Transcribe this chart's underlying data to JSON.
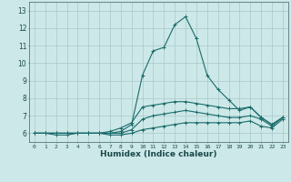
{
  "title": "",
  "xlabel": "Humidex (Indice chaleur)",
  "ylabel": "",
  "background_color": "#cde8e8",
  "grid_color": "#aac8c8",
  "line_color": "#1a6b6b",
  "xlim": [
    -0.5,
    23.5
  ],
  "ylim": [
    5.5,
    13.5
  ],
  "yticks": [
    6,
    7,
    8,
    9,
    10,
    11,
    12,
    13
  ],
  "xticks": [
    0,
    1,
    2,
    3,
    4,
    5,
    6,
    7,
    8,
    9,
    10,
    11,
    12,
    13,
    14,
    15,
    16,
    17,
    18,
    19,
    20,
    21,
    22,
    23
  ],
  "series": [
    {
      "x": [
        0,
        1,
        2,
        3,
        4,
        5,
        6,
        7,
        8,
        9,
        10,
        11,
        12,
        13,
        14,
        15,
        16,
        17,
        18,
        19,
        20,
        21,
        22,
        23
      ],
      "y": [
        6.0,
        6.0,
        6.0,
        6.0,
        6.0,
        6.0,
        6.0,
        6.0,
        6.1,
        6.5,
        9.3,
        10.7,
        10.9,
        12.2,
        12.65,
        11.4,
        9.3,
        8.5,
        7.9,
        7.3,
        7.5,
        6.9,
        6.5,
        6.9
      ]
    },
    {
      "x": [
        0,
        1,
        2,
        3,
        4,
        5,
        6,
        7,
        8,
        9,
        10,
        11,
        12,
        13,
        14,
        15,
        16,
        17,
        18,
        19,
        20,
        21,
        22,
        23
      ],
      "y": [
        6.0,
        6.0,
        6.0,
        6.0,
        6.0,
        6.0,
        6.0,
        6.1,
        6.3,
        6.6,
        7.5,
        7.6,
        7.7,
        7.8,
        7.8,
        7.7,
        7.6,
        7.5,
        7.4,
        7.4,
        7.5,
        6.9,
        6.5,
        6.9
      ]
    },
    {
      "x": [
        0,
        1,
        2,
        3,
        4,
        5,
        6,
        7,
        8,
        9,
        10,
        11,
        12,
        13,
        14,
        15,
        16,
        17,
        18,
        19,
        20,
        21,
        22,
        23
      ],
      "y": [
        6.0,
        6.0,
        6.0,
        6.0,
        6.0,
        6.0,
        6.0,
        6.0,
        6.0,
        6.2,
        6.8,
        7.0,
        7.1,
        7.2,
        7.3,
        7.2,
        7.1,
        7.0,
        6.9,
        6.9,
        7.0,
        6.8,
        6.4,
        6.9
      ]
    },
    {
      "x": [
        0,
        1,
        2,
        3,
        4,
        5,
        6,
        7,
        8,
        9,
        10,
        11,
        12,
        13,
        14,
        15,
        16,
        17,
        18,
        19,
        20,
        21,
        22,
        23
      ],
      "y": [
        6.0,
        6.0,
        5.9,
        5.9,
        6.0,
        6.0,
        6.0,
        5.9,
        5.9,
        6.0,
        6.2,
        6.3,
        6.4,
        6.5,
        6.6,
        6.6,
        6.6,
        6.6,
        6.6,
        6.6,
        6.7,
        6.4,
        6.3,
        6.8
      ]
    }
  ]
}
